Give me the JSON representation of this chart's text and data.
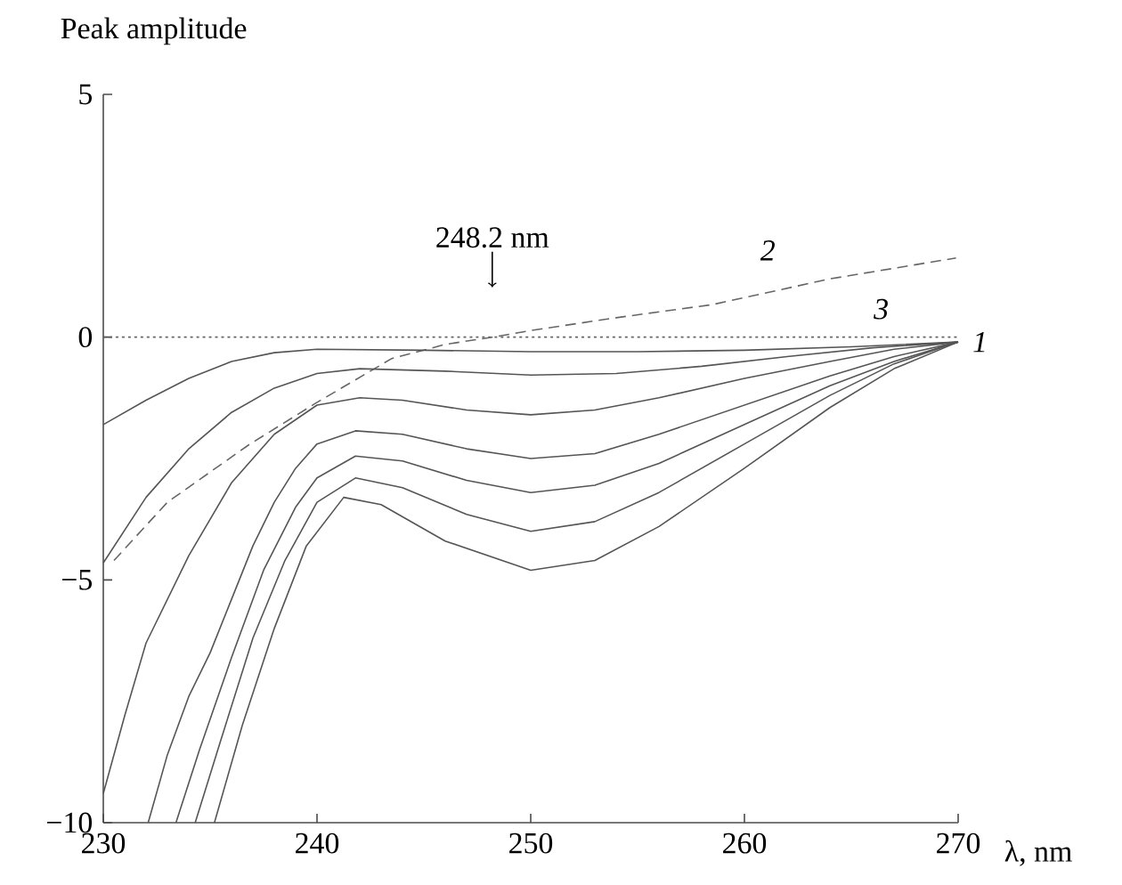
{
  "chart_data": {
    "type": "line",
    "ylabel": "Peak amplitude",
    "xlabel": "λ, nm",
    "xlim": [
      230,
      270
    ],
    "ylim": [
      -10,
      5
    ],
    "xticks": [
      230,
      240,
      250,
      260,
      270
    ],
    "yticks": [
      {
        "value": -10,
        "label": "−10"
      },
      {
        "value": -5,
        "label": "−5"
      },
      0,
      5
    ],
    "marker": "none",
    "annotations": [
      {
        "text": "248.2 nm",
        "x": 248.2,
        "y": 0
      }
    ],
    "series": [
      {
        "name": "3",
        "color": "#666666",
        "line_style": "dotted",
        "x": [
          230,
          240,
          250,
          260,
          270
        ],
        "values": [
          0,
          0,
          0,
          0,
          0
        ]
      },
      {
        "name": "2",
        "color": "#666666",
        "line_style": "dashed",
        "x": [
          230.5,
          233,
          236.8,
          239.9,
          243.5,
          246,
          248.2,
          250.2,
          254,
          258.5,
          264,
          269.9
        ],
        "values": [
          -4.6,
          -3.4,
          -2.22,
          -1.37,
          -0.44,
          -0.15,
          0,
          0.15,
          0.4,
          0.67,
          1.2,
          1.63
        ]
      },
      {
        "name": "1",
        "color": "#555555",
        "line_style": "solid",
        "x": [
          230,
          232,
          234,
          236,
          238,
          240,
          245,
          250,
          255,
          260,
          265,
          270
        ],
        "values": [
          -1.8,
          -1.3,
          -0.85,
          -0.5,
          -0.32,
          -0.25,
          -0.27,
          -0.3,
          -0.3,
          -0.27,
          -0.2,
          -0.1
        ]
      },
      {
        "color": "#555555",
        "line_style": "solid",
        "x": [
          230,
          232,
          234,
          236,
          238,
          240,
          242,
          246,
          250,
          254,
          258,
          262,
          266,
          270
        ],
        "values": [
          -4.65,
          -3.3,
          -2.3,
          -1.55,
          -1.05,
          -0.75,
          -0.65,
          -0.7,
          -0.78,
          -0.75,
          -0.6,
          -0.4,
          -0.22,
          -0.1
        ]
      },
      {
        "color": "#555555",
        "line_style": "solid",
        "x": [
          230,
          231,
          232,
          234,
          236,
          238,
          240,
          242,
          244,
          247,
          250,
          253,
          256,
          260,
          264,
          267,
          270
        ],
        "values": [
          -9.4,
          -7.8,
          -6.3,
          -4.5,
          -3.0,
          -2.0,
          -1.4,
          -1.25,
          -1.3,
          -1.5,
          -1.6,
          -1.5,
          -1.25,
          -0.85,
          -0.5,
          -0.25,
          -0.1
        ]
      },
      {
        "color": "#555555",
        "line_style": "solid",
        "x": [
          232.1,
          233,
          234,
          235,
          236,
          237,
          238,
          239,
          240,
          241.8,
          244,
          247,
          250,
          253,
          256,
          260,
          264,
          267,
          270
        ],
        "values": [
          -10,
          -8.6,
          -7.4,
          -6.5,
          -5.4,
          -4.3,
          -3.4,
          -2.7,
          -2.2,
          -1.93,
          -2.0,
          -2.3,
          -2.5,
          -2.4,
          -2.0,
          -1.4,
          -0.8,
          -0.4,
          -0.1
        ]
      },
      {
        "color": "#555555",
        "line_style": "solid",
        "x": [
          233.4,
          234.5,
          236,
          237.5,
          239,
          240,
          241.8,
          244,
          247,
          250,
          253,
          256,
          260,
          264,
          267,
          270
        ],
        "values": [
          -10,
          -8.5,
          -6.6,
          -4.8,
          -3.5,
          -2.9,
          -2.45,
          -2.55,
          -2.95,
          -3.2,
          -3.05,
          -2.6,
          -1.8,
          -1.0,
          -0.5,
          -0.1
        ]
      },
      {
        "color": "#555555",
        "line_style": "solid",
        "x": [
          234.3,
          235.5,
          237,
          238.5,
          240,
          241.8,
          244,
          247,
          250,
          253,
          256,
          260,
          264,
          267,
          270
        ],
        "values": [
          -10,
          -8.3,
          -6.2,
          -4.6,
          -3.4,
          -2.9,
          -3.1,
          -3.65,
          -4.0,
          -3.8,
          -3.2,
          -2.2,
          -1.2,
          -0.55,
          -0.1
        ]
      },
      {
        "color": "#555555",
        "line_style": "solid",
        "x": [
          235.2,
          236.5,
          238,
          239.5,
          241.25,
          243,
          246,
          250,
          253,
          256,
          260,
          264,
          267,
          270
        ],
        "values": [
          -10,
          -8.0,
          -6.0,
          -4.3,
          -3.3,
          -3.45,
          -4.2,
          -4.8,
          -4.6,
          -3.9,
          -2.7,
          -1.45,
          -0.65,
          -0.1
        ]
      }
    ]
  }
}
